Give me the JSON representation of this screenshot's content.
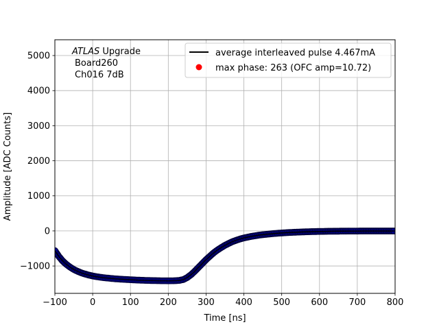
{
  "chart_data": {
    "type": "line",
    "xlabel": "Time [ns]",
    "ylabel": "Amplitude [ADC Counts]",
    "xlim": [
      -100,
      800
    ],
    "ylim": [
      -1780,
      5450
    ],
    "xticks": [
      -100,
      0,
      100,
      200,
      300,
      400,
      500,
      600,
      700,
      800
    ],
    "yticks": [
      -1000,
      0,
      1000,
      2000,
      3000,
      4000,
      5000
    ],
    "grid": true,
    "legend_position": "top-right",
    "annotation": {
      "line1_italic": "ATLAS",
      "line1_rest": " Upgrade",
      "line2": "Board260",
      "line3": "Ch016 7dB"
    },
    "series": [
      {
        "name": "average interleaved pulse 4.467mA",
        "color": "#000000",
        "x": [
          -100,
          -90,
          -80,
          -70,
          -60,
          -50,
          -40,
          -30,
          -20,
          -10,
          0,
          10,
          20,
          30,
          40,
          50,
          60,
          70,
          80,
          90,
          100,
          110,
          120,
          130,
          140,
          150,
          160,
          170,
          180,
          190,
          200,
          210,
          220,
          230,
          240,
          250,
          260,
          270,
          280,
          290,
          300,
          310,
          320,
          330,
          340,
          350,
          360,
          370,
          380,
          390,
          400,
          420,
          440,
          460,
          480,
          500,
          520,
          540,
          560,
          580,
          600,
          620,
          640,
          660,
          680,
          700,
          720,
          740,
          760,
          780,
          800
        ],
        "y": [
          -560,
          -720,
          -850,
          -950,
          -1030,
          -1100,
          -1150,
          -1195,
          -1230,
          -1260,
          -1285,
          -1305,
          -1320,
          -1335,
          -1345,
          -1355,
          -1365,
          -1372,
          -1380,
          -1386,
          -1392,
          -1397,
          -1402,
          -1406,
          -1410,
          -1413,
          -1416,
          -1418,
          -1420,
          -1421,
          -1422,
          -1421,
          -1418,
          -1410,
          -1385,
          -1330,
          -1250,
          -1150,
          -1040,
          -930,
          -820,
          -720,
          -625,
          -545,
          -475,
          -410,
          -355,
          -305,
          -265,
          -230,
          -200,
          -155,
          -120,
          -95,
          -75,
          -58,
          -45,
          -35,
          -27,
          -20,
          -15,
          -11,
          -8,
          -6,
          -4,
          -3,
          -2,
          -2,
          -1,
          -1,
          -1
        ]
      },
      {
        "name": "max phase: 263 (OFC amp=10.72)",
        "color": "#ff0000",
        "marker": "circle",
        "x": [],
        "y": []
      }
    ],
    "data_markers_color": "#0000cc"
  }
}
